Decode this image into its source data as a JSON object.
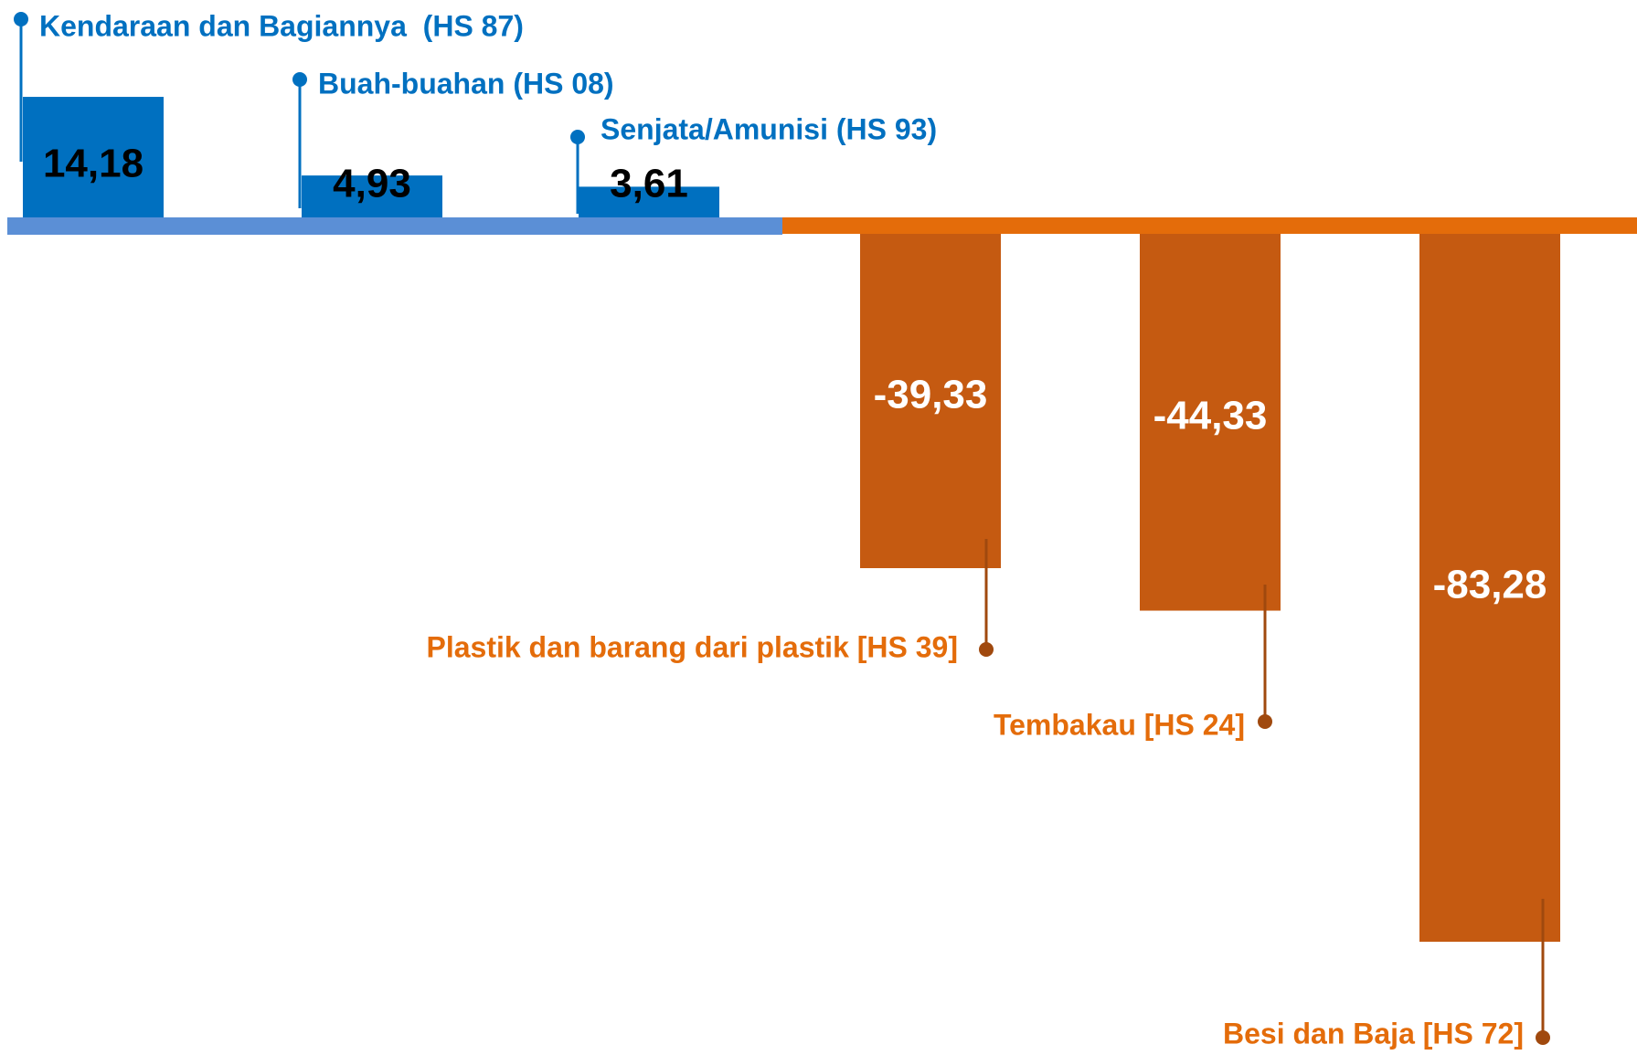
{
  "chart_data": {
    "type": "bar",
    "categories": [
      "Kendaraan dan Bagiannya  (HS 87)",
      "Buah-buahan (HS 08)",
      "Senjata/Amunisi (HS 93)",
      "Plastik dan barang dari plastik [HS 39]",
      "Tembakau [HS 24]",
      "Besi dan Baja [HS 72]"
    ],
    "values": [
      14.18,
      4.93,
      3.61,
      -39.33,
      -44.33,
      -83.28
    ],
    "value_labels": [
      "14,18",
      "4,93",
      "3,61",
      "-39,33",
      "-44,33",
      "-83,28"
    ],
    "colors": [
      "#0070c0",
      "#0070c0",
      "#0070c0",
      "#c55a11",
      "#c55a11",
      "#c55a11"
    ]
  }
}
